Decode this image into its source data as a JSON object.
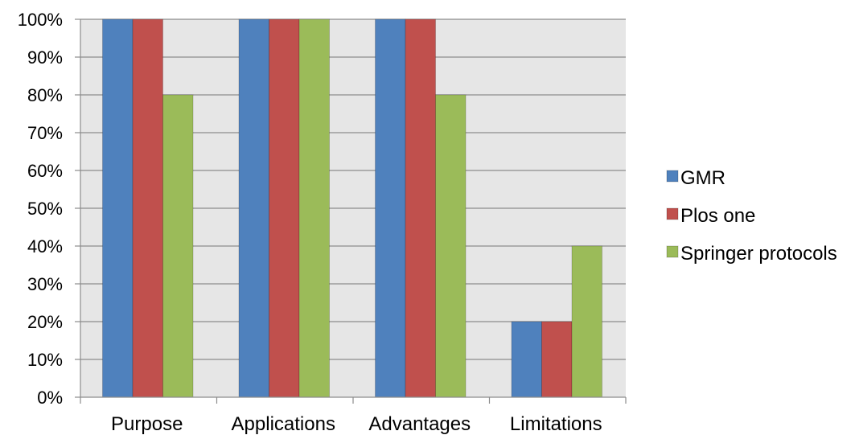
{
  "chart_data": {
    "type": "bar",
    "categories": [
      "Purpose",
      "Applications",
      "Advantages",
      "Limitations"
    ],
    "series": [
      {
        "name": "GMR",
        "values": [
          100,
          100,
          100,
          20
        ],
        "color": "#4F81BD"
      },
      {
        "name": "Plos one",
        "values": [
          100,
          100,
          100,
          20
        ],
        "color": "#C0504D"
      },
      {
        "name": "Springer protocols",
        "values": [
          80,
          100,
          80,
          40
        ],
        "color": "#9BBB59"
      }
    ],
    "title": "",
    "xlabel": "",
    "ylabel": "",
    "ylim": [
      0,
      100
    ],
    "yticks": [
      "0%",
      "10%",
      "20%",
      "30%",
      "40%",
      "50%",
      "60%",
      "70%",
      "80%",
      "90%",
      "100%"
    ],
    "grid": true,
    "plot_background": "#E6E6E6",
    "legend_position": "right"
  }
}
